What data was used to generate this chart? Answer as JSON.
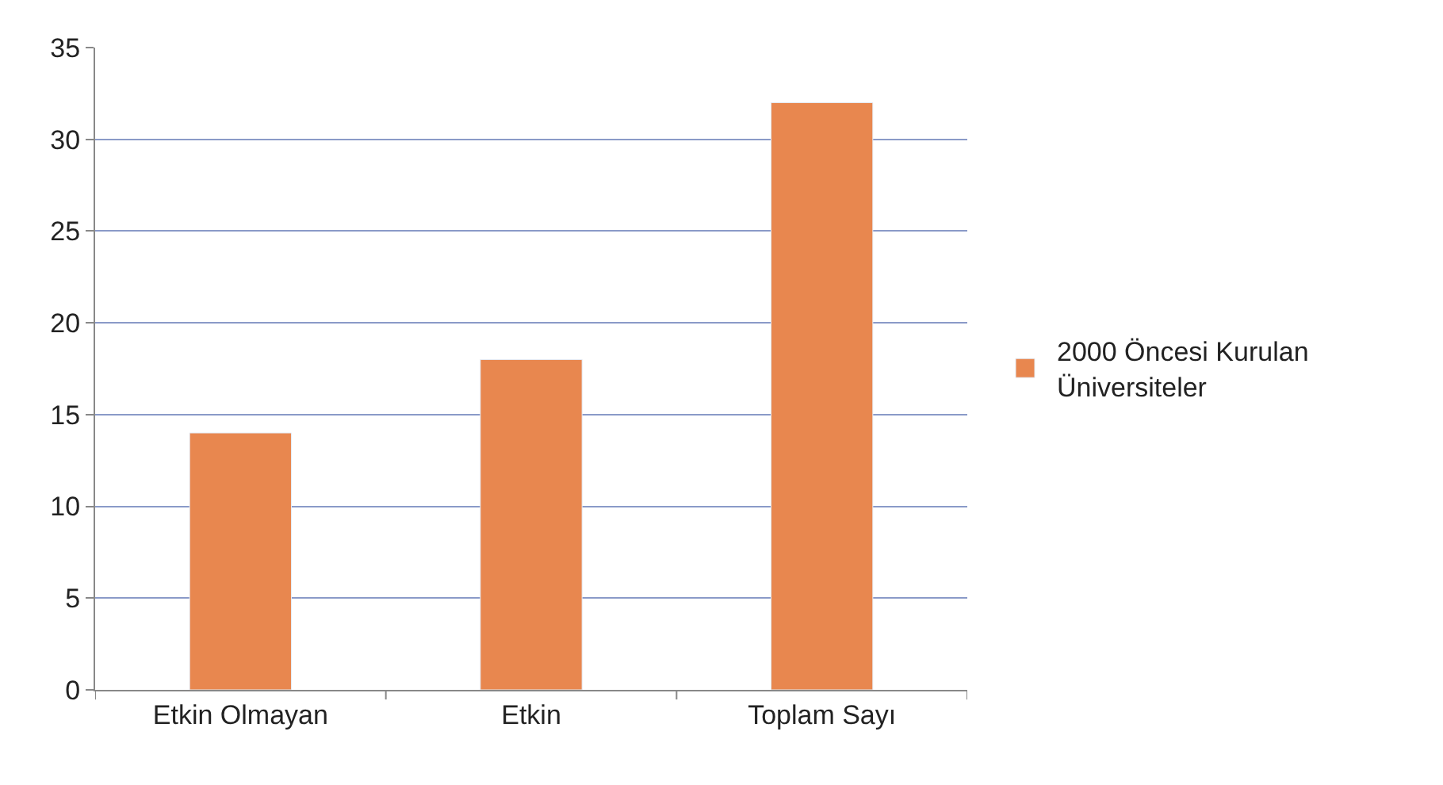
{
  "chart_data": {
    "type": "bar",
    "categories": [
      "Etkin Olmayan",
      "Etkin",
      "Toplam Sayı"
    ],
    "series": [
      {
        "name": "2000 Öncesi Kurulan Üniversiteler",
        "color": "#e8874f",
        "values": [
          14,
          18,
          32
        ]
      }
    ],
    "ylim": [
      0,
      35
    ],
    "yticks": [
      0,
      5,
      10,
      15,
      20,
      25,
      30,
      35
    ],
    "grid": "y",
    "legend": "right"
  }
}
